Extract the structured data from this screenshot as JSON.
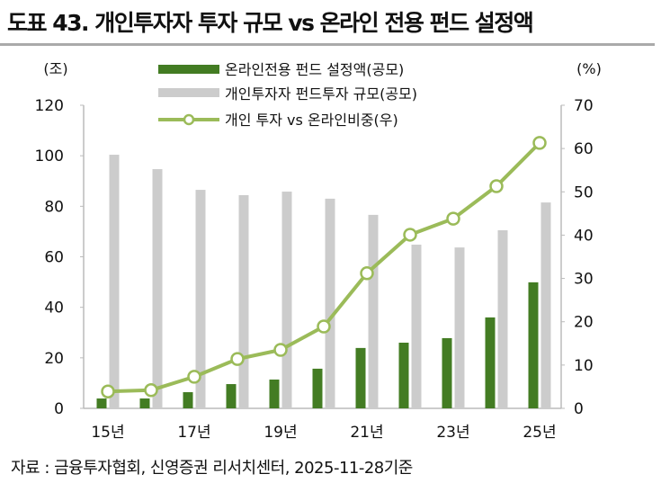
{
  "title": "도표 43. 개인투자자 투자 규모 vs 온라인 전용 펀드 설정액",
  "footer": "자료 : 금융투자협회, 신영증권 리서치센터, 2025-11-28기준",
  "chart_data": {
    "type": "bar+line",
    "categories": [
      "15년",
      "",
      "17년",
      "",
      "19년",
      "",
      "21년",
      "",
      "23년",
      "",
      "25년"
    ],
    "left_axis": {
      "unit_label": "(조)",
      "range": [
        0,
        120
      ],
      "ticks": [
        0,
        20,
        40,
        60,
        80,
        100,
        120
      ]
    },
    "right_axis": {
      "unit_label": "(%)",
      "range": [
        0,
        70
      ],
      "ticks": [
        0,
        10,
        20,
        30,
        40,
        50,
        60,
        70
      ]
    },
    "grid": false,
    "legend_position": "top-center",
    "series": [
      {
        "name": "온라인전용 펀드 설정액(공모)",
        "type": "bar",
        "axis": "left",
        "color": "#437c23",
        "values": [
          3.9,
          3.9,
          6.4,
          9.6,
          11.4,
          15.7,
          23.9,
          26.0,
          27.8,
          36.0,
          49.9
        ]
      },
      {
        "name": "개인투자자 펀드투자 규모(공모)",
        "type": "bar",
        "axis": "left",
        "color": "#cccccc",
        "values": [
          100.4,
          94.7,
          86.5,
          84.4,
          85.8,
          83.0,
          76.6,
          64.8,
          63.7,
          70.5,
          81.5
        ]
      },
      {
        "name": "개인 투자 vs 온라인비중(우)",
        "type": "line",
        "axis": "right",
        "color": "#9bbb59",
        "values": [
          3.9,
          4.2,
          7.3,
          11.4,
          13.5,
          18.9,
          31.2,
          40.1,
          43.8,
          51.3,
          61.3
        ]
      }
    ]
  }
}
